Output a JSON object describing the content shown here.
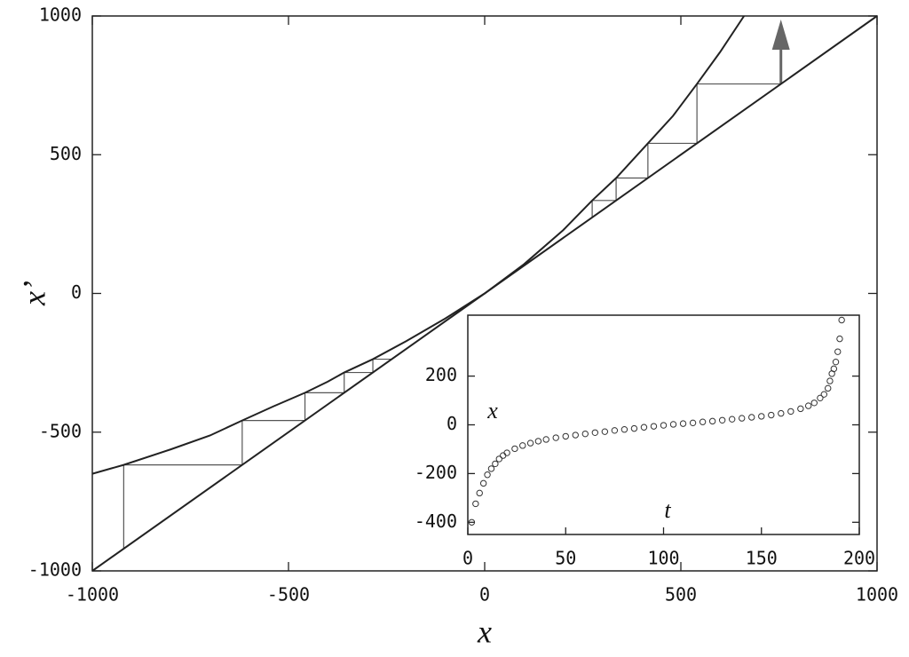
{
  "chart_data": [
    {
      "type": "line",
      "xlabel": "x",
      "ylabel": "x’",
      "xlim": [
        -1000,
        1000
      ],
      "ylim": [
        -1000,
        1000
      ],
      "xticks": [
        -1000,
        -500,
        0,
        500,
        1000
      ],
      "yticks": [
        -1000,
        -500,
        0,
        500,
        1000
      ],
      "series": [
        {
          "color": "#222",
          "x": [
            -1000,
            1000
          ],
          "values": [
            -1000,
            1000
          ]
        },
        {
          "color": "#222",
          "x": [
            -1000,
            -920,
            -800,
            -700,
            -618,
            -540,
            -458,
            -400,
            -358,
            -285,
            -200,
            -100,
            0,
            100,
            200,
            274,
            335,
            416,
            480,
            541,
            600,
            661
          ],
          "values": [
            -650,
            -618,
            -562,
            -512,
            -458,
            -408,
            -358,
            -318,
            -285,
            -237,
            -172,
            -90,
            0,
            105,
            228,
            335,
            416,
            541,
            640,
            755,
            870,
            1000
          ]
        }
      ],
      "iterates": [
        [
          -920,
          -618,
          -458,
          -358,
          -285,
          -237
        ],
        [
          274,
          335,
          416,
          541,
          755
        ]
      ],
      "cobweb_color": "#555"
    },
    {
      "type": "scatter",
      "xlabel": "t",
      "ylabel": "x",
      "xlim": [
        0,
        200
      ],
      "ylim": [
        -450,
        450
      ],
      "xticks": [
        0,
        50,
        100,
        150,
        200
      ],
      "yticks": [
        -400,
        -200,
        0,
        200
      ],
      "color": "#333",
      "x": [
        2,
        4,
        6,
        8,
        10,
        12,
        14,
        16,
        18,
        20,
        24,
        28,
        32,
        36,
        40,
        45,
        50,
        55,
        60,
        65,
        70,
        75,
        80,
        85,
        90,
        95,
        100,
        105,
        110,
        115,
        120,
        125,
        130,
        135,
        140,
        145,
        150,
        155,
        160,
        165,
        170,
        174,
        177,
        180,
        182,
        184,
        185,
        186,
        187,
        188,
        189,
        190,
        191
      ],
      "values": [
        -400,
        -324,
        -280,
        -240,
        -205,
        -180,
        -160,
        -140,
        -126,
        -115,
        -98,
        -85,
        -75,
        -67,
        -60,
        -53,
        -47,
        -42,
        -37,
        -32,
        -28,
        -23,
        -19,
        -15,
        -10,
        -6,
        -2,
        2,
        5,
        8,
        12,
        15,
        19,
        23,
        27,
        31,
        35,
        40,
        47,
        55,
        66,
        78,
        90,
        110,
        125,
        150,
        180,
        210,
        230,
        258,
        300,
        353,
        430
      ]
    }
  ]
}
